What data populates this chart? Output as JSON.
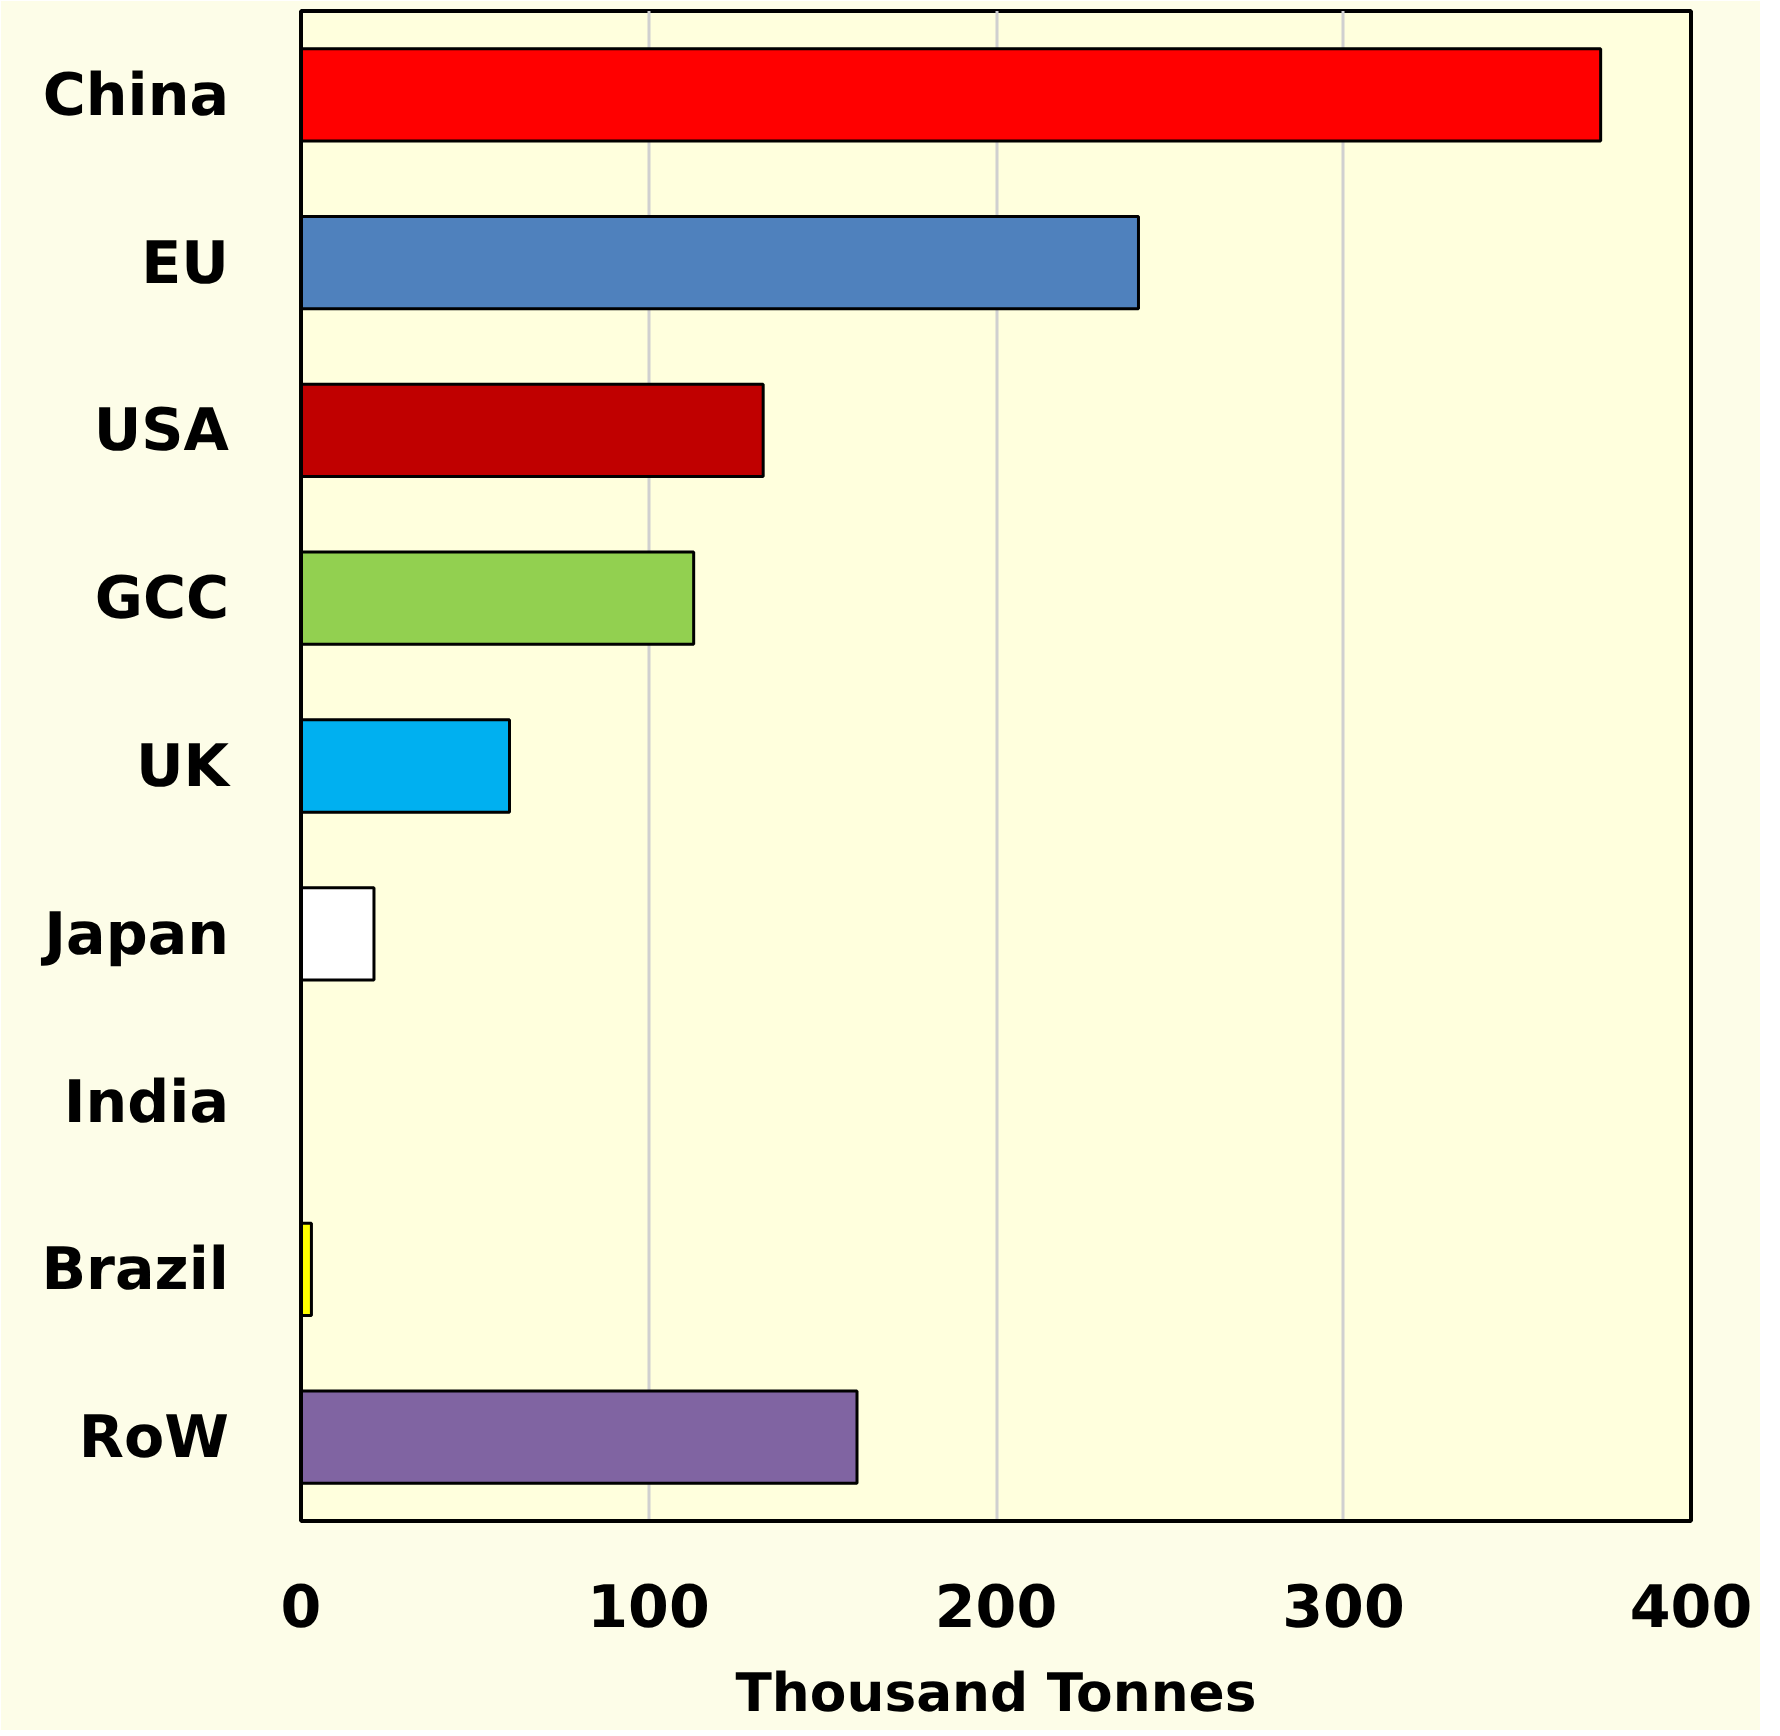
{
  "chart_data": {
    "type": "bar",
    "orientation": "horizontal",
    "xlabel": "Thousand Tonnes",
    "categories": [
      "China",
      "EU",
      "USA",
      "GCC",
      "UK",
      "Japan",
      "India",
      "Brazil",
      "RoW"
    ],
    "values": [
      374,
      241,
      133,
      113,
      60,
      21,
      null,
      3,
      160
    ],
    "colors": [
      "#ff0000",
      "#4f81bd",
      "#c00000",
      "#92d050",
      "#00b0f0",
      "#ffffff",
      "#000000",
      "#ffff00",
      "#8064a2"
    ],
    "xlim": [
      0,
      400
    ],
    "xticks": [
      0,
      100,
      200,
      300,
      400
    ],
    "grid": "x"
  }
}
